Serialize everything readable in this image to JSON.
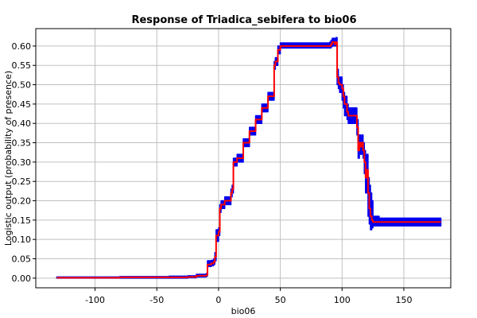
{
  "chart_data": {
    "type": "line",
    "title": "Response of Triadica_sebifera to bio06",
    "xlabel": "bio06",
    "ylabel": "Logistic output (probability of presence)",
    "xlim": [
      -148,
      188
    ],
    "ylim": [
      -0.025,
      0.645
    ],
    "xticks": [
      -100,
      -50,
      0,
      50,
      100,
      150
    ],
    "yticks": [
      0.0,
      0.05,
      0.1,
      0.15,
      0.2,
      0.25,
      0.3,
      0.35,
      0.4,
      0.45,
      0.5,
      0.55,
      0.6
    ],
    "ytick_labels": [
      "0.00",
      "0.05",
      "0.10",
      "0.15",
      "0.20",
      "0.25",
      "0.30",
      "0.35",
      "0.40",
      "0.45",
      "0.50",
      "0.55",
      "0.60"
    ],
    "grid": true,
    "colors": {
      "mean": "#ff0000",
      "band": "#0000ee",
      "grid": "#c0c0c0",
      "axis": "#000000"
    },
    "series": [
      {
        "role": "mean",
        "x": [
          -131,
          -100,
          -80,
          -60,
          -40,
          -25,
          -18,
          -10,
          -9,
          -6,
          -4,
          -3,
          -2,
          -1,
          0,
          1,
          2,
          5,
          10,
          11,
          12,
          15,
          20,
          25,
          30,
          35,
          40,
          45,
          46,
          48,
          50,
          55,
          60,
          70,
          80,
          90,
          91,
          92,
          93,
          94,
          95,
          96,
          97,
          98,
          100,
          101,
          102,
          104,
          105,
          106,
          110,
          112,
          113,
          114,
          115,
          116,
          117,
          118,
          119,
          120,
          121,
          122,
          123,
          124,
          125,
          130,
          140,
          150,
          160,
          170,
          180
        ],
        "y": [
          0.001,
          0.001,
          0.002,
          0.002,
          0.002,
          0.003,
          0.006,
          0.008,
          0.035,
          0.038,
          0.042,
          0.055,
          0.11,
          0.11,
          0.12,
          0.18,
          0.19,
          0.2,
          0.22,
          0.23,
          0.3,
          0.31,
          0.35,
          0.38,
          0.41,
          0.44,
          0.47,
          0.55,
          0.56,
          0.59,
          0.6,
          0.6,
          0.6,
          0.6,
          0.6,
          0.6,
          0.605,
          0.61,
          0.61,
          0.605,
          0.61,
          0.52,
          0.505,
          0.5,
          0.49,
          0.47,
          0.45,
          0.43,
          0.42,
          0.42,
          0.42,
          0.39,
          0.33,
          0.35,
          0.34,
          0.35,
          0.33,
          0.3,
          0.26,
          0.28,
          0.22,
          0.18,
          0.16,
          0.15,
          0.145,
          0.145,
          0.145,
          0.145,
          0.145,
          0.145,
          0.145
        ]
      },
      {
        "role": "upper",
        "x": [
          -131,
          -100,
          -80,
          -60,
          -40,
          -25,
          -18,
          -10,
          -9,
          -6,
          -4,
          -3,
          -2,
          -1,
          0,
          1,
          2,
          5,
          10,
          11,
          12,
          15,
          20,
          25,
          30,
          35,
          40,
          45,
          46,
          48,
          50,
          55,
          60,
          70,
          80,
          90,
          91,
          92,
          93,
          94,
          95,
          96,
          97,
          98,
          100,
          101,
          102,
          104,
          105,
          106,
          110,
          112,
          113,
          114,
          115,
          116,
          117,
          118,
          119,
          120,
          121,
          122,
          123,
          124,
          125,
          130,
          140,
          150,
          160,
          170,
          180
        ],
        "y": [
          0.003,
          0.003,
          0.004,
          0.004,
          0.005,
          0.006,
          0.01,
          0.012,
          0.045,
          0.046,
          0.05,
          0.066,
          0.125,
          0.125,
          0.13,
          0.19,
          0.2,
          0.21,
          0.23,
          0.24,
          0.31,
          0.32,
          0.36,
          0.39,
          0.42,
          0.45,
          0.48,
          0.56,
          0.57,
          0.6,
          0.608,
          0.608,
          0.608,
          0.608,
          0.608,
          0.61,
          0.615,
          0.62,
          0.62,
          0.618,
          0.622,
          0.54,
          0.52,
          0.52,
          0.5,
          0.48,
          0.47,
          0.45,
          0.44,
          0.44,
          0.44,
          0.41,
          0.35,
          0.37,
          0.36,
          0.37,
          0.35,
          0.33,
          0.29,
          0.32,
          0.26,
          0.24,
          0.22,
          0.2,
          0.16,
          0.155,
          0.155,
          0.155,
          0.155,
          0.155,
          0.155
        ]
      },
      {
        "role": "lower",
        "x": [
          -131,
          -100,
          -80,
          -60,
          -40,
          -25,
          -18,
          -10,
          -9,
          -6,
          -4,
          -3,
          -2,
          -1,
          0,
          1,
          2,
          5,
          10,
          11,
          12,
          15,
          20,
          25,
          30,
          35,
          40,
          45,
          46,
          48,
          50,
          55,
          60,
          70,
          80,
          90,
          91,
          92,
          93,
          94,
          95,
          96,
          97,
          98,
          100,
          101,
          102,
          104,
          105,
          106,
          110,
          112,
          113,
          114,
          115,
          116,
          117,
          118,
          119,
          120,
          121,
          122,
          123,
          124,
          125,
          130,
          140,
          150,
          160,
          170,
          180
        ],
        "y": [
          0.0,
          0.0,
          0.0,
          0.0,
          0.0,
          0.001,
          0.003,
          0.005,
          0.03,
          0.032,
          0.036,
          0.045,
          0.095,
          0.095,
          0.11,
          0.17,
          0.18,
          0.19,
          0.21,
          0.22,
          0.29,
          0.3,
          0.34,
          0.37,
          0.4,
          0.43,
          0.46,
          0.54,
          0.55,
          0.58,
          0.595,
          0.595,
          0.595,
          0.595,
          0.595,
          0.595,
          0.598,
          0.6,
          0.6,
          0.6,
          0.6,
          0.5,
          0.49,
          0.48,
          0.46,
          0.44,
          0.42,
          0.41,
          0.4,
          0.4,
          0.4,
          0.37,
          0.31,
          0.33,
          0.32,
          0.33,
          0.31,
          0.27,
          0.22,
          0.22,
          0.16,
          0.14,
          0.125,
          0.13,
          0.135,
          0.135,
          0.135,
          0.135,
          0.135,
          0.135,
          0.135
        ]
      }
    ]
  }
}
